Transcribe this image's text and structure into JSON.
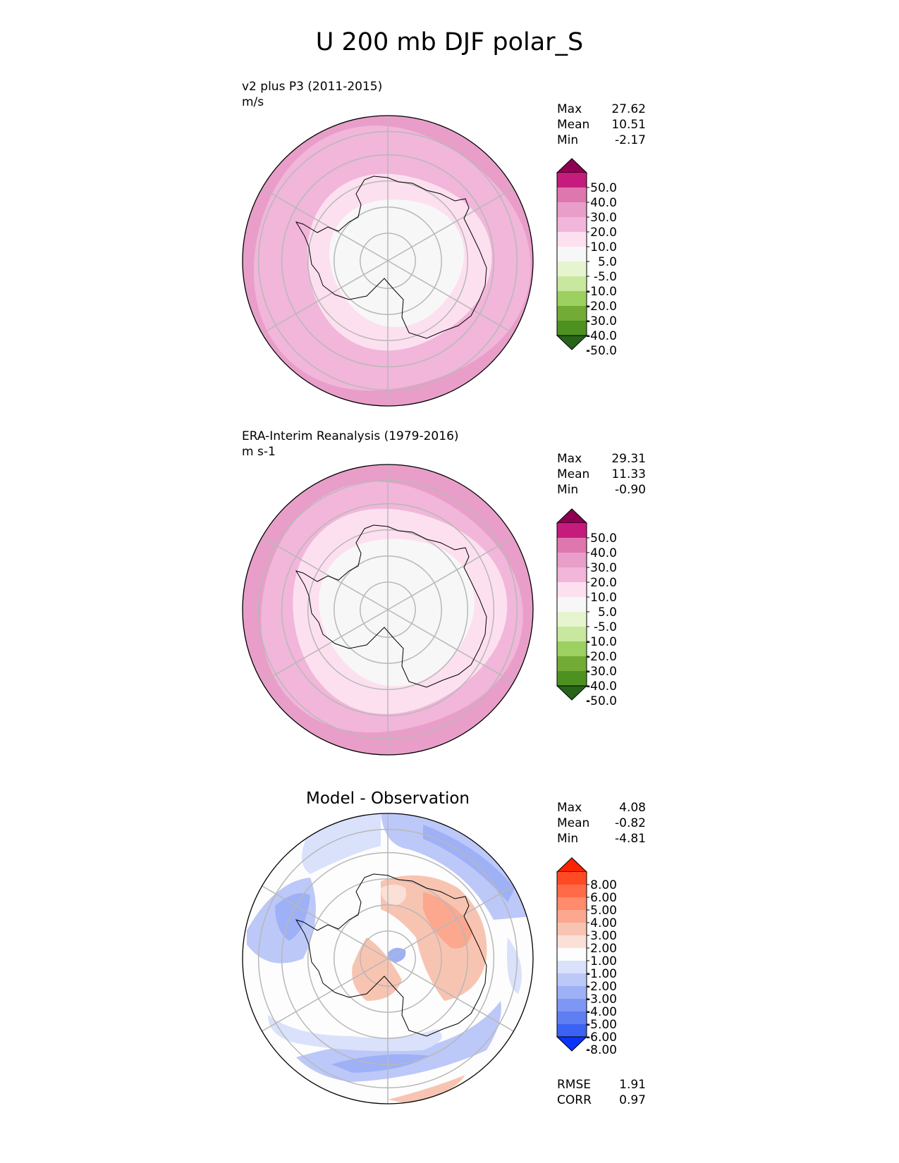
{
  "title": "U 200 mb DJF polar_S",
  "colors": {
    "grid": "#b8b8b8",
    "coast": "#000000"
  },
  "panels": [
    {
      "id": "test",
      "name": "v2 plus P3 (2011-2015)",
      "units": "m/s",
      "stats": {
        "max_label": "Max",
        "max": "27.62",
        "mean_label": "Mean",
        "mean": "10.51",
        "min_label": "Min",
        "min": "-2.17"
      },
      "colorbar": {
        "labels": [
          "50.0",
          "40.0",
          "30.0",
          "20.0",
          "10.0",
          "5.0",
          "-5.0",
          "-10.0",
          "-20.0",
          "-30.0",
          "-40.0",
          "-50.0"
        ],
        "colors": [
          "#8e0152",
          "#c51b7d",
          "#de77ae",
          "#e89ec8",
          "#f1b6da",
          "#fde0ef",
          "#f7f7f7",
          "#e6f5d0",
          "#c8e8a0",
          "#9cd060",
          "#72ab35",
          "#4d9221",
          "#276419"
        ]
      },
      "rings": [
        {
          "level": 30.0,
          "color": "#e89ec8",
          "radius_frac": 1.0
        },
        {
          "level": 20.0,
          "color": "#f1b6da",
          "radius_frac": 0.93
        },
        {
          "level": 10.0,
          "color": "#fde0ef",
          "radius_frac": 0.62
        },
        {
          "level": 5.0,
          "color": "#f7f7f7",
          "radius_frac": 0.45
        }
      ]
    },
    {
      "id": "ref",
      "name": "ERA-Interim Reanalysis (1979-2016)",
      "units": "m s-1",
      "stats": {
        "max_label": "Max",
        "max": "29.31",
        "mean_label": "Mean",
        "mean": "11.33",
        "min_label": "Min",
        "min": "-0.90"
      },
      "colorbar": {
        "labels": [
          "50.0",
          "40.0",
          "30.0",
          "20.0",
          "10.0",
          "5.0",
          "-5.0",
          "-10.0",
          "-20.0",
          "-30.0",
          "-40.0",
          "-50.0"
        ],
        "colors": [
          "#8e0152",
          "#c51b7d",
          "#de77ae",
          "#e89ec8",
          "#f1b6da",
          "#fde0ef",
          "#f7f7f7",
          "#e6f5d0",
          "#c8e8a0",
          "#9cd060",
          "#72ab35",
          "#4d9221",
          "#276419"
        ]
      },
      "rings": [
        {
          "level": 30.0,
          "color": "#e89ec8",
          "radius_frac": 1.0
        },
        {
          "level": 20.0,
          "color": "#f1b6da",
          "radius_frac": 0.88
        },
        {
          "level": 10.0,
          "color": "#fde0ef",
          "radius_frac": 0.72
        },
        {
          "level": 5.0,
          "color": "#f7f7f7",
          "radius_frac": 0.52
        }
      ]
    },
    {
      "id": "diff",
      "name": "Model - Observation",
      "stats": {
        "max_label": "Max",
        "max": "4.08",
        "mean_label": "Mean",
        "mean": "-0.82",
        "min_label": "Min",
        "min": "-4.81"
      },
      "colorbar": {
        "labels": [
          "8.00",
          "6.00",
          "5.00",
          "4.00",
          "3.00",
          "2.00",
          "1.00",
          "-1.00",
          "-2.00",
          "-3.00",
          "-4.00",
          "-5.00",
          "-6.00",
          "-8.00"
        ],
        "colors": [
          "#ff2200",
          "#ff4a24",
          "#ff6a48",
          "#ff8a6c",
          "#fba88f",
          "#f8c4b2",
          "#fbe0d8",
          "#fdfdfd",
          "#dae1fb",
          "#bcc8f8",
          "#9eb0f6",
          "#7e97f4",
          "#5e7ef2",
          "#3c62f3",
          "#0b34f9"
        ]
      },
      "metrics": {
        "rmse_label": "RMSE",
        "rmse": "1.91",
        "corr_label": "CORR",
        "corr": "0.97"
      }
    }
  ]
}
